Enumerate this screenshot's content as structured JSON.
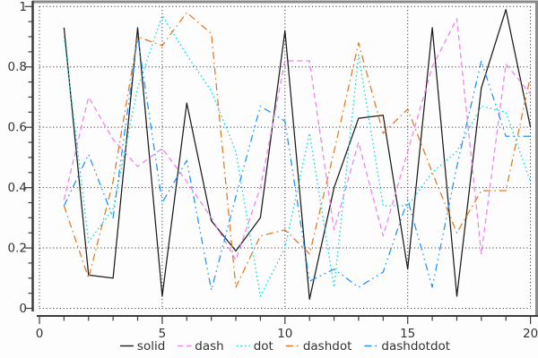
{
  "chart_data": {
    "type": "line",
    "title": "",
    "xlabel": "",
    "ylabel": "",
    "xlim": [
      0,
      20
    ],
    "ylim": [
      0,
      1
    ],
    "grid": "dotted",
    "legend_position": "bottom-center",
    "axis_color": "#3c3c3c",
    "frame_color": "#8a8a8a",
    "grid_color": "#1a1a1a",
    "tick_label_color": "#333333",
    "xticks": {
      "values": [
        0,
        5,
        10,
        15,
        20
      ],
      "labels": [
        "0",
        "5",
        "10",
        "15",
        "20"
      ],
      "minor_step": 1
    },
    "yticks": {
      "values": [
        0,
        0.2,
        0.4,
        0.6,
        0.8,
        1
      ],
      "labels": [
        "0",
        "0.2",
        "0.4",
        "0.6",
        "0.8",
        "1"
      ],
      "minor_step": 0.05
    },
    "x": [
      1,
      2,
      3,
      4,
      5,
      6,
      7,
      8,
      9,
      10,
      11,
      12,
      13,
      14,
      15,
      16,
      17,
      18,
      19,
      20
    ],
    "series": [
      {
        "name": "solid",
        "line_style": "solid",
        "color": "#1a1a1a",
        "values": [
          0.93,
          0.11,
          0.1,
          0.93,
          0.04,
          0.68,
          0.29,
          0.19,
          0.3,
          0.92,
          0.03,
          0.4,
          0.63,
          0.64,
          0.13,
          0.93,
          0.04,
          0.73,
          0.99,
          0.6
        ]
      },
      {
        "name": "dash",
        "line_style": "dash",
        "color": "#ee82ee",
        "values": [
          0.36,
          0.7,
          0.56,
          0.47,
          0.53,
          0.42,
          0.3,
          0.16,
          0.4,
          0.82,
          0.82,
          0.26,
          0.55,
          0.24,
          0.52,
          0.8,
          0.96,
          0.18,
          0.81,
          0.71
        ]
      },
      {
        "name": "dot",
        "line_style": "dot",
        "color": "#00dcdc",
        "values": [
          0.9,
          0.22,
          0.33,
          0.73,
          0.97,
          0.84,
          0.72,
          0.52,
          0.04,
          0.2,
          0.58,
          0.07,
          0.84,
          0.34,
          0.34,
          0.45,
          0.52,
          0.67,
          0.65,
          0.42
        ]
      },
      {
        "name": "dashdot",
        "line_style": "dashdot",
        "color": "#e07820",
        "values": [
          0.34,
          0.1,
          0.42,
          0.9,
          0.87,
          0.98,
          0.91,
          0.07,
          0.24,
          0.26,
          0.18,
          0.52,
          0.88,
          0.58,
          0.66,
          0.45,
          0.25,
          0.39,
          0.39,
          0.77
        ]
      },
      {
        "name": "dashdotdot",
        "line_style": "dashdotdot",
        "color": "#1e90ff",
        "values": [
          0.34,
          0.51,
          0.3,
          0.9,
          0.35,
          0.49,
          0.06,
          0.37,
          0.67,
          0.62,
          0.09,
          0.13,
          0.07,
          0.12,
          0.36,
          0.07,
          0.47,
          0.82,
          0.57,
          0.57
        ]
      }
    ]
  }
}
